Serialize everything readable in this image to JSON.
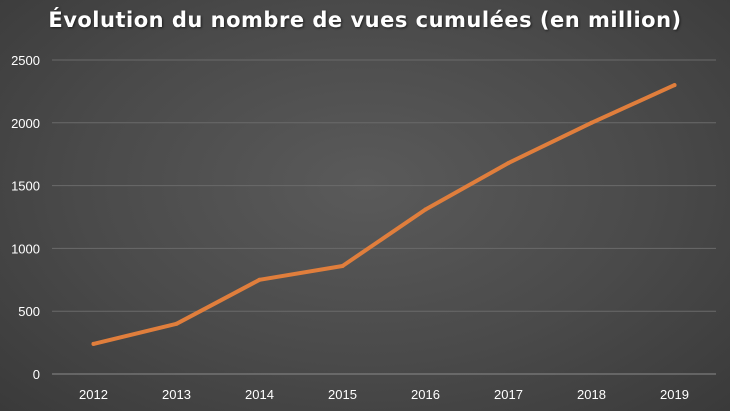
{
  "chart_data": {
    "type": "line",
    "title": "Évolution du nombre de vues cumulées (en million)",
    "xlabel": "",
    "ylabel": "",
    "categories": [
      "2012",
      "2013",
      "2014",
      "2015",
      "2016",
      "2017",
      "2018",
      "2019"
    ],
    "series": [
      {
        "values": [
          240,
          400,
          750,
          860,
          1310,
          1680,
          2000,
          2300
        ],
        "color": "#E07E3C"
      }
    ],
    "ylim": [
      0,
      2500
    ],
    "yticks": [
      0,
      500,
      1000,
      1500,
      2000,
      2500
    ],
    "grid": true,
    "legend": "none",
    "colors": {
      "background": "#4a4a4a",
      "grid": "#6a6a6a",
      "axis": "#8a8a8a",
      "text": "#ffffff"
    }
  }
}
